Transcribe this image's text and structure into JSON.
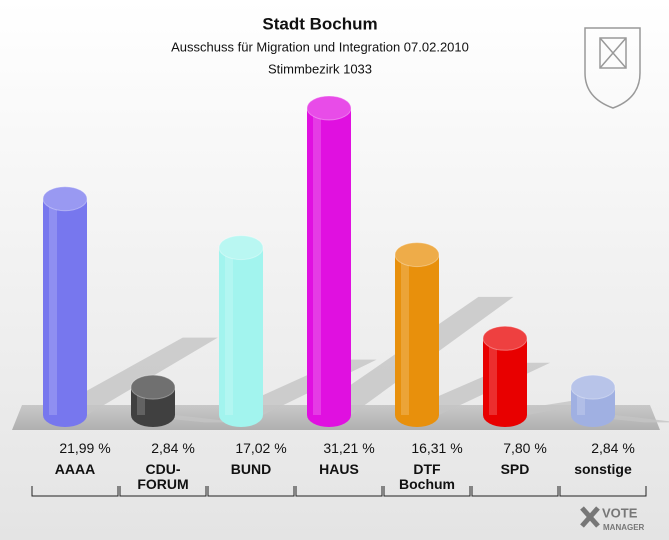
{
  "chart_data": {
    "type": "bar3d",
    "title": "Stadt Bochum",
    "subtitle": "Ausschuss für Migration und Integration 07.02.2010",
    "district": "Stimmbezirk 1033",
    "categories": [
      "AAAA",
      "CDU-FORUM",
      "BUND",
      "HAUS",
      "DTF Bochum",
      "SPD",
      "sonstige"
    ],
    "values": [
      21.99,
      2.84,
      17.02,
      31.21,
      16.31,
      7.8,
      2.84
    ],
    "value_labels": [
      "21,99 %",
      "2,84 %",
      "17,02 %",
      "31,21 %",
      "16,31 %",
      "7,80 %",
      "2,84 %"
    ],
    "colors": [
      "#7777ee",
      "#404040",
      "#a2f4ee",
      "#e010e0",
      "#e8900c",
      "#e80000",
      "#a0b0e2"
    ],
    "watermark": [
      "VOTE",
      "MANAGER"
    ]
  }
}
